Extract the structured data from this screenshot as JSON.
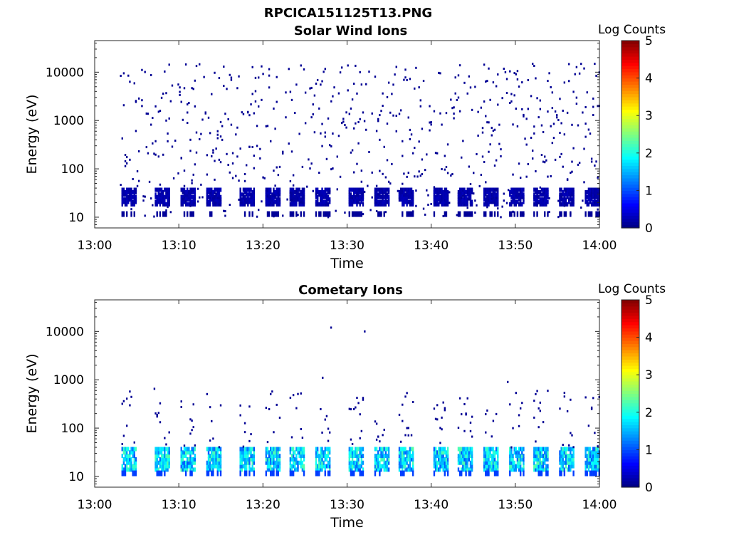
{
  "figure_title": "RPCICA151125T13.PNG",
  "chart_data": [
    {
      "type": "heatmap",
      "title": "Solar Wind Ions",
      "xlabel": "Time",
      "ylabel": "Energy (eV)",
      "y_scale": "log",
      "ylim": [
        6,
        45000
      ],
      "xlim": [
        "13:00",
        "14:00"
      ],
      "x_tick_labels": [
        "13:00",
        "13:10",
        "13:20",
        "13:30",
        "13:40",
        "13:50",
        "14:00"
      ],
      "y_tick_labels": [
        "10",
        "100",
        "1000",
        "10000"
      ],
      "colorbar": {
        "label": "Log Counts",
        "range": [
          0,
          5
        ],
        "tick_labels": [
          "0",
          "1",
          "2",
          "3",
          "4",
          "5"
        ],
        "colormap": "jet"
      },
      "data_start": "13:03",
      "data_end": "14:00",
      "sweep_centers": [
        "13:04",
        "13:08",
        "13:11",
        "13:14",
        "13:18",
        "13:21",
        "13:24",
        "13:27",
        "13:31",
        "13:34",
        "13:37",
        "13:41",
        "13:44",
        "13:47",
        "13:50",
        "13:53",
        "13:56",
        "13:59"
      ],
      "peak_energy_band_eV": [
        20,
        40
      ],
      "peak_log_counts": 0.3,
      "sparse_energy_range_eV": [
        10,
        15000
      ]
    },
    {
      "type": "heatmap",
      "title": "Cometary Ions",
      "xlabel": "Time",
      "ylabel": "Energy (eV)",
      "y_scale": "log",
      "ylim": [
        6,
        45000
      ],
      "xlim": [
        "13:00",
        "14:00"
      ],
      "x_tick_labels": [
        "13:00",
        "13:10",
        "13:20",
        "13:30",
        "13:40",
        "13:50",
        "14:00"
      ],
      "y_tick_labels": [
        "10",
        "100",
        "1000",
        "10000"
      ],
      "colorbar": {
        "label": "Log Counts",
        "range": [
          0,
          5
        ],
        "tick_labels": [
          "0",
          "1",
          "2",
          "3",
          "4",
          "5"
        ],
        "colormap": "jet"
      },
      "data_start": "13:03",
      "data_end": "14:00",
      "sweep_centers": [
        "13:04",
        "13:08",
        "13:11",
        "13:14",
        "13:18",
        "13:21",
        "13:24",
        "13:27",
        "13:31",
        "13:34",
        "13:37",
        "13:41",
        "13:44",
        "13:47",
        "13:50",
        "13:53",
        "13:56",
        "13:59"
      ],
      "peak_energy_band_eV": [
        15,
        40
      ],
      "peak_log_counts": 2.3,
      "sparse_energy_range_eV": [
        40,
        600
      ],
      "isolated_points": [
        {
          "time": "13:27",
          "energy_eV": 1100
        },
        {
          "time": "13:28",
          "energy_eV": 12000
        },
        {
          "time": "13:32",
          "energy_eV": 10000
        },
        {
          "time": "13:49",
          "energy_eV": 900
        },
        {
          "time": "13:07",
          "energy_eV": 650
        }
      ]
    }
  ]
}
